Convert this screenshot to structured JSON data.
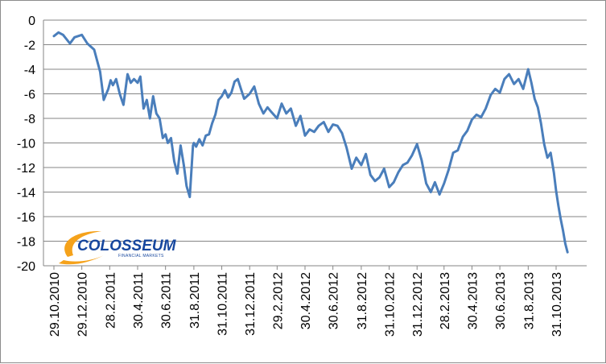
{
  "colors": {
    "series": "#4a7ebb",
    "grid": "#858585",
    "axis": "#858585",
    "logo_word": "#17479e",
    "logo_swoosh": "#f5a21b"
  },
  "logo": {
    "name": "COLOSSEUM",
    "tagline": "FINANCIAL MARKETS"
  },
  "chart_data": {
    "type": "line",
    "title": "",
    "xlabel": "",
    "ylabel": "",
    "ylim": [
      -20,
      0
    ],
    "grid": true,
    "legend": "none",
    "y_ticks": [
      "0",
      "-2",
      "-4",
      "-6",
      "-8",
      "-10",
      "-12",
      "-14",
      "-16",
      "-18",
      "-20"
    ],
    "x_ticks": [
      "29.10.2010",
      "29.12.2010",
      "28.2.2011",
      "30.4.2011",
      "30.6.2011",
      "31.8.2011",
      "31.10.2011",
      "31.12.2011",
      "29.2.2012",
      "30.4.2012",
      "30.6.2012",
      "31.8.2012",
      "31.10.2012",
      "31.12.2012",
      "28.2.2013",
      "30.4.2013",
      "30.6.2013",
      "31.8.2013",
      "31.10.2013"
    ],
    "series": [
      {
        "x": [
          "2010-10-29",
          "2010-11-08",
          "2010-11-18",
          "2010-12-03",
          "2010-12-13",
          "2010-12-29",
          "2011-01-10",
          "2011-01-25",
          "2011-02-07",
          "2011-02-15",
          "2011-02-25",
          "2011-03-02",
          "2011-03-07",
          "2011-03-14",
          "2011-03-22",
          "2011-03-30",
          "2011-04-08",
          "2011-04-15",
          "2011-04-22",
          "2011-04-30",
          "2011-05-06",
          "2011-05-13",
          "2011-05-20",
          "2011-05-27",
          "2011-06-03",
          "2011-06-10",
          "2011-06-17",
          "2011-06-24",
          "2011-06-30",
          "2011-07-05",
          "2011-07-12",
          "2011-07-19",
          "2011-07-26",
          "2011-08-02",
          "2011-08-09",
          "2011-08-15",
          "2011-08-22",
          "2011-08-29",
          "2011-08-31",
          "2011-09-05",
          "2011-09-12",
          "2011-09-19",
          "2011-09-26",
          "2011-10-03",
          "2011-10-10",
          "2011-10-17",
          "2011-10-24",
          "2011-10-31",
          "2011-11-07",
          "2011-11-14",
          "2011-11-21",
          "2011-11-28",
          "2011-12-05",
          "2011-12-12",
          "2011-12-19",
          "2011-12-31",
          "2012-01-10",
          "2012-01-20",
          "2012-01-30",
          "2012-02-08",
          "2012-02-17",
          "2012-02-29",
          "2012-03-10",
          "2012-03-20",
          "2012-03-30",
          "2012-04-10",
          "2012-04-20",
          "2012-04-30",
          "2012-05-10",
          "2012-05-20",
          "2012-05-30",
          "2012-06-10",
          "2012-06-20",
          "2012-06-30",
          "2012-07-10",
          "2012-07-20",
          "2012-07-30",
          "2012-08-10",
          "2012-08-20",
          "2012-08-31",
          "2012-09-10",
          "2012-09-20",
          "2012-09-30",
          "2012-10-10",
          "2012-10-20",
          "2012-10-31",
          "2012-11-10",
          "2012-11-20",
          "2012-11-30",
          "2012-12-10",
          "2012-12-20",
          "2012-12-31",
          "2013-01-10",
          "2013-01-20",
          "2013-01-30",
          "2013-02-08",
          "2013-02-18",
          "2013-02-28",
          "2013-03-10",
          "2013-03-20",
          "2013-03-30",
          "2013-04-10",
          "2013-04-20",
          "2013-04-30",
          "2013-05-10",
          "2013-05-20",
          "2013-05-30",
          "2013-06-10",
          "2013-06-20",
          "2013-06-30",
          "2013-07-10",
          "2013-07-20",
          "2013-07-31",
          "2013-08-10",
          "2013-08-20",
          "2013-08-31",
          "2013-09-07",
          "2013-09-14",
          "2013-09-21",
          "2013-09-28",
          "2013-10-05",
          "2013-10-12",
          "2013-10-19",
          "2013-10-26",
          "2013-10-31",
          "2013-11-05",
          "2013-11-10",
          "2013-11-15",
          "2013-11-20",
          "2013-11-25"
        ],
        "values": [
          -1.3,
          -1.0,
          -1.2,
          -1.9,
          -1.4,
          -1.2,
          -1.9,
          -2.4,
          -4.2,
          -6.5,
          -5.6,
          -4.9,
          -5.3,
          -4.8,
          -6.0,
          -6.9,
          -4.4,
          -5.1,
          -4.8,
          -5.1,
          -4.6,
          -7.2,
          -6.5,
          -8.0,
          -6.2,
          -7.6,
          -8.0,
          -9.6,
          -9.3,
          -10.0,
          -9.6,
          -11.5,
          -12.5,
          -10.2,
          -11.8,
          -13.5,
          -14.4,
          -10.2,
          -10.0,
          -10.3,
          -9.7,
          -10.2,
          -9.4,
          -9.3,
          -8.4,
          -7.7,
          -6.5,
          -6.2,
          -5.7,
          -6.3,
          -5.9,
          -5.0,
          -4.8,
          -5.6,
          -6.4,
          -6.0,
          -5.4,
          -6.8,
          -7.6,
          -7.1,
          -7.5,
          -8.0,
          -6.8,
          -7.6,
          -7.2,
          -8.6,
          -7.8,
          -9.4,
          -8.9,
          -9.1,
          -8.6,
          -8.3,
          -9.1,
          -8.5,
          -8.6,
          -9.2,
          -10.4,
          -12.1,
          -11.2,
          -11.8,
          -10.9,
          -12.6,
          -13.1,
          -12.8,
          -12.1,
          -13.6,
          -13.2,
          -12.4,
          -11.8,
          -11.6,
          -11.0,
          -10.1,
          -11.4,
          -13.3,
          -14.0,
          -13.2,
          -14.2,
          -13.3,
          -12.2,
          -10.8,
          -10.6,
          -9.5,
          -9.0,
          -8.1,
          -7.7,
          -7.9,
          -7.2,
          -6.1,
          -5.6,
          -5.9,
          -4.8,
          -4.4,
          -5.2,
          -4.8,
          -5.6,
          -4.0,
          -5.1,
          -6.4,
          -7.1,
          -8.4,
          -10.1,
          -11.2,
          -10.8,
          -12.4,
          -13.9,
          -15.1,
          -16.2,
          -17.1,
          -18.2,
          -18.9
        ]
      }
    ]
  }
}
